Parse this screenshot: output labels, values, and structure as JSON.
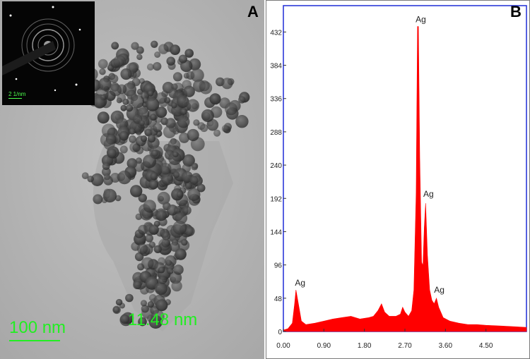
{
  "panel_a": {
    "label": "A",
    "inset_scale_label": "2 1/nm",
    "scale_bar_label": "100 nm",
    "particle_size_label": "11.48 nm"
  },
  "panel_b": {
    "label": "B"
  },
  "chart_data": {
    "type": "area",
    "title": "",
    "xlabel": "",
    "ylabel": "",
    "xlim": [
      0,
      5.4
    ],
    "ylim": [
      0,
      470
    ],
    "x_ticks": [
      "0.00",
      "0.90",
      "1.80",
      "2.70",
      "3.60",
      "4.50"
    ],
    "y_ticks": [
      "0",
      "48",
      "96",
      "144",
      "192",
      "240",
      "288",
      "336",
      "384",
      "432"
    ],
    "series": [
      {
        "color": "#ff0000",
        "points": [
          [
            0.0,
            2
          ],
          [
            0.1,
            4
          ],
          [
            0.2,
            12
          ],
          [
            0.25,
            40
          ],
          [
            0.28,
            60
          ],
          [
            0.32,
            45
          ],
          [
            0.4,
            15
          ],
          [
            0.5,
            10
          ],
          [
            0.7,
            12
          ],
          [
            0.9,
            15
          ],
          [
            1.1,
            18
          ],
          [
            1.3,
            20
          ],
          [
            1.5,
            22
          ],
          [
            1.7,
            18
          ],
          [
            1.9,
            20
          ],
          [
            2.0,
            22
          ],
          [
            2.1,
            30
          ],
          [
            2.18,
            40
          ],
          [
            2.25,
            28
          ],
          [
            2.35,
            22
          ],
          [
            2.5,
            22
          ],
          [
            2.6,
            25
          ],
          [
            2.65,
            35
          ],
          [
            2.7,
            28
          ],
          [
            2.78,
            22
          ],
          [
            2.85,
            30
          ],
          [
            2.9,
            60
          ],
          [
            2.95,
            200
          ],
          [
            2.98,
            440
          ],
          [
            3.0,
            440
          ],
          [
            3.03,
            250
          ],
          [
            3.07,
            100
          ],
          [
            3.1,
            95
          ],
          [
            3.13,
            150
          ],
          [
            3.16,
            185
          ],
          [
            3.2,
            110
          ],
          [
            3.25,
            60
          ],
          [
            3.3,
            45
          ],
          [
            3.35,
            40
          ],
          [
            3.4,
            48
          ],
          [
            3.45,
            35
          ],
          [
            3.55,
            20
          ],
          [
            3.7,
            15
          ],
          [
            3.9,
            12
          ],
          [
            4.1,
            10
          ],
          [
            4.3,
            10
          ],
          [
            4.5,
            9
          ],
          [
            4.8,
            8
          ],
          [
            5.1,
            7
          ],
          [
            5.4,
            6
          ]
        ]
      }
    ],
    "annotations": [
      {
        "text": "Ag",
        "x": 0.31,
        "y": 60
      },
      {
        "text": "Ag",
        "x": 2.99,
        "y": 440
      },
      {
        "text": "Ag",
        "x": 3.16,
        "y": 188
      },
      {
        "text": "Ag",
        "x": 3.4,
        "y": 50
      }
    ],
    "colors": {
      "fill": "#ff0000",
      "frame": "#1f2bd6",
      "background": "#ffffff"
    },
    "grid": false,
    "legend": "none"
  }
}
